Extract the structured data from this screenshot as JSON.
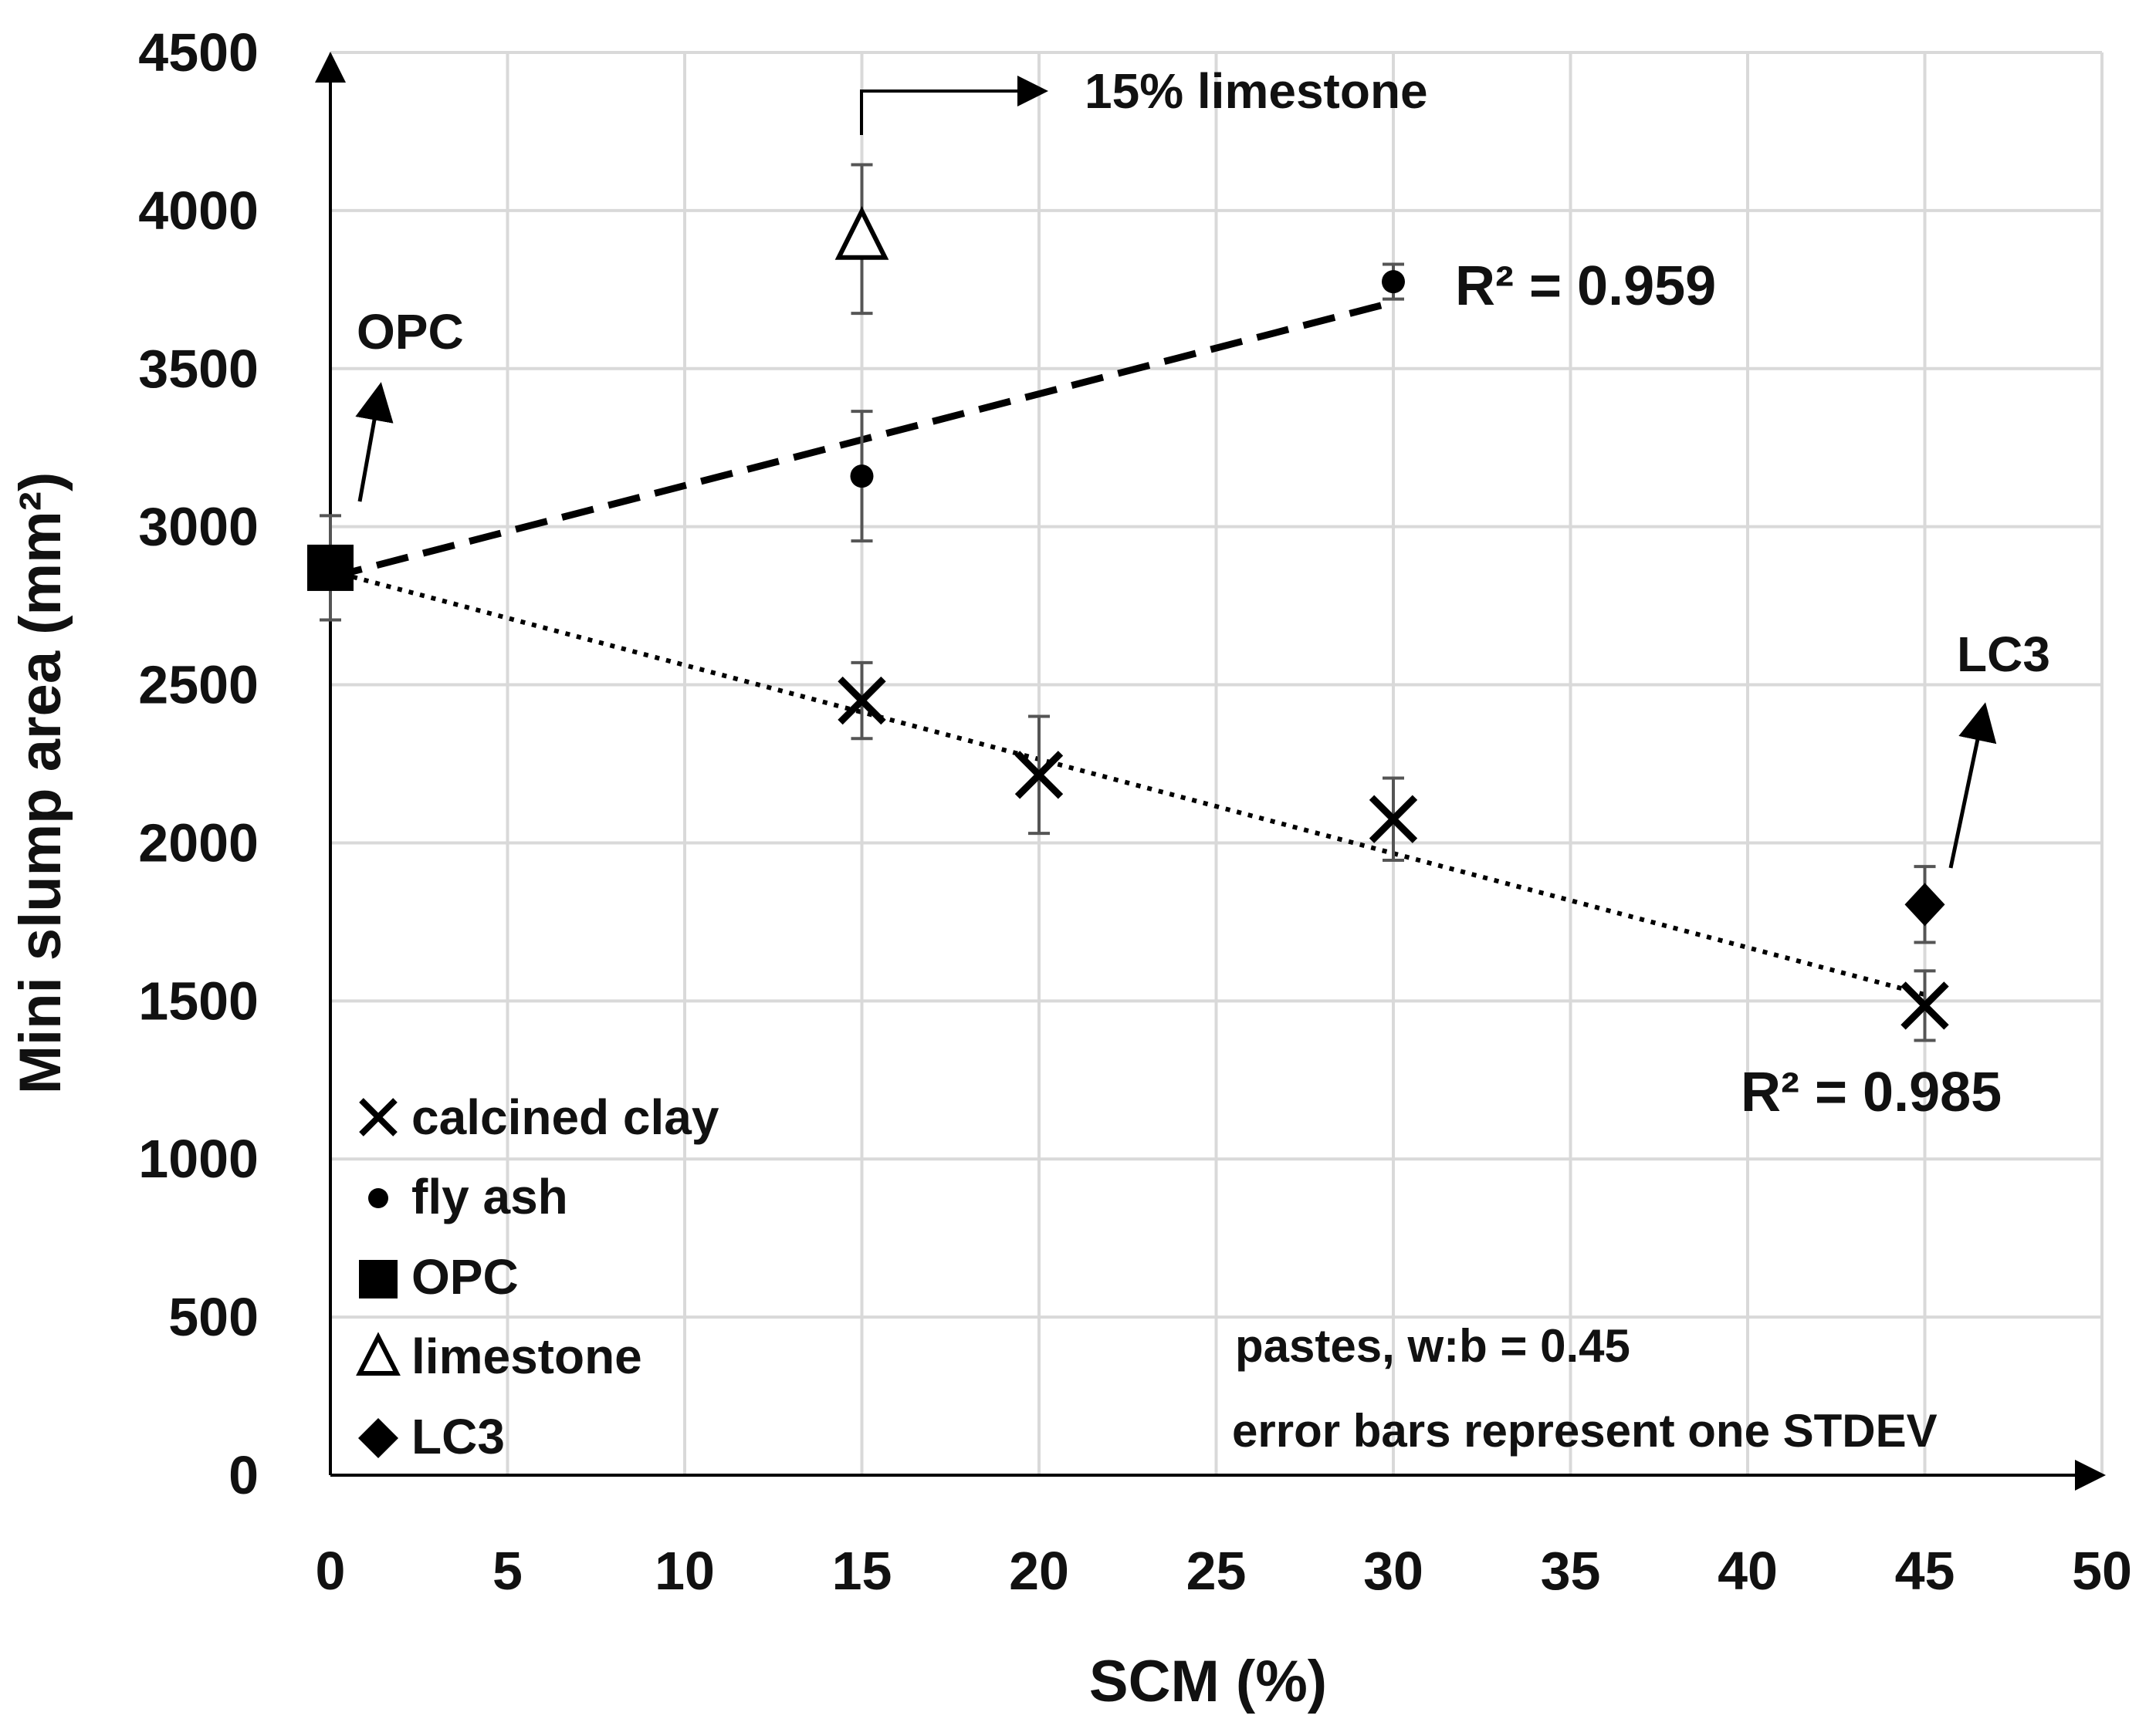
{
  "chart_data": {
    "type": "scatter",
    "xlabel": "SCM (%)",
    "ylabel": "Mini slump area (mm²)",
    "xlim": [
      0,
      50
    ],
    "ylim": [
      0,
      4500
    ],
    "xticks": [
      "0",
      "5",
      "10",
      "15",
      "20",
      "25",
      "30",
      "35",
      "40",
      "45",
      "50"
    ],
    "yticks": [
      "0",
      "500",
      "1000",
      "1500",
      "2000",
      "2500",
      "3000",
      "3500",
      "4000",
      "4500"
    ],
    "grid": true,
    "legend_position": "bottom-left",
    "series": [
      {
        "name": "calcined clay",
        "marker": "x",
        "points": [
          {
            "x": 15,
            "y": 2450,
            "err": 120
          },
          {
            "x": 20,
            "y": 2215,
            "err": 185
          },
          {
            "x": 30,
            "y": 2075,
            "err": 130
          },
          {
            "x": 45,
            "y": 1485,
            "err": 110
          }
        ]
      },
      {
        "name": "fly ash",
        "marker": "circle",
        "points": [
          {
            "x": 15,
            "y": 3160,
            "err": 205
          },
          {
            "x": 30,
            "y": 3775,
            "err": 55
          }
        ]
      },
      {
        "name": "OPC",
        "marker": "square",
        "points": [
          {
            "x": 0,
            "y": 2870,
            "err": 165
          }
        ]
      },
      {
        "name": "limestone",
        "marker": "triangle",
        "points": [
          {
            "x": 15,
            "y": 3910,
            "err": 235
          }
        ]
      },
      {
        "name": "LC3",
        "marker": "diamond",
        "points": [
          {
            "x": 45,
            "y": 1805,
            "err": 120
          }
        ]
      }
    ],
    "trendlines": [
      {
        "series": "fly ash",
        "style": "dashed",
        "from": [
          0,
          2840
        ],
        "to": [
          30,
          3710
        ],
        "label": "R² = 0.959"
      },
      {
        "series": "calcined clay",
        "style": "dotted",
        "from": [
          0,
          2860
        ],
        "to": [
          45,
          1520
        ],
        "label": "R² = 0.985"
      }
    ],
    "annotations": {
      "opc": "OPC",
      "lc3": "LC3",
      "limestone": "15% limestone"
    },
    "notes": [
      "pastes, w:b = 0.45",
      "error bars represent one STDEV"
    ]
  }
}
